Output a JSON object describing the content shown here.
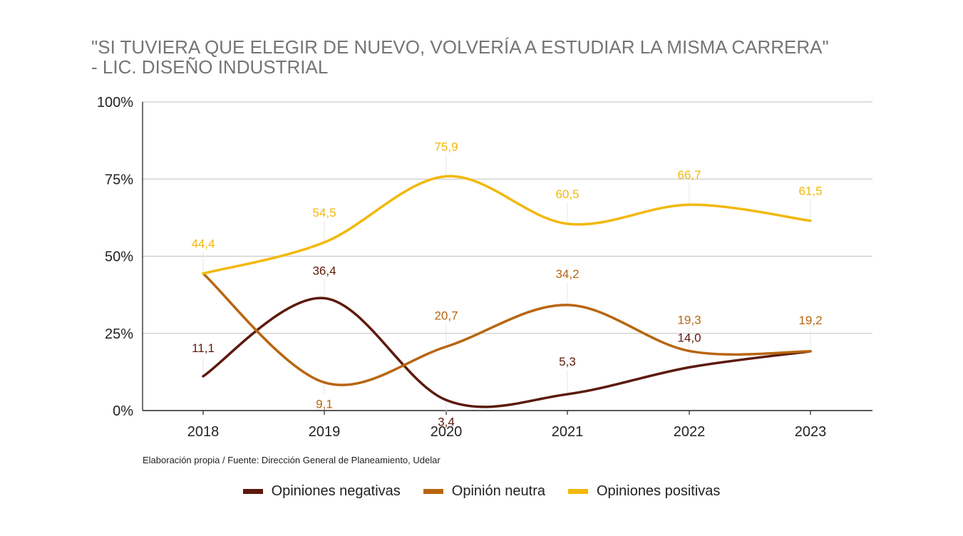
{
  "title_line1": "\"SI TUVIERA QUE ELEGIR DE NUEVO, VOLVERÍA A ESTUDIAR LA MISMA CARRERA\"",
  "title_line2": "- LIC. DISEÑO INDUSTRIAL",
  "source": "Elaboración propia / Fuente: Dirección General de Planeamiento, Udelar",
  "colors": {
    "negativas": "#5c1a0b",
    "neutra": "#b8650f",
    "positivas": "#f2b80a",
    "grid": "#cccccc",
    "axis": "#222222"
  },
  "chart_data": {
    "type": "line",
    "title": "\"SI TUVIERA QUE ELEGIR DE NUEVO, VOLVERÍA A ESTUDIAR LA MISMA CARRERA\" - LIC. DISEÑO INDUSTRIAL",
    "categories": [
      "2018",
      "2019",
      "2020",
      "2021",
      "2022",
      "2023"
    ],
    "yticks": [
      "0%",
      "25%",
      "50%",
      "75%",
      "100%"
    ],
    "ylim": [
      0,
      100
    ],
    "grid": true,
    "legend_position": "bottom",
    "smooth": true,
    "series": [
      {
        "name": "Opiniones negativas",
        "color": "#5c1a0b",
        "values": [
          11.1,
          36.4,
          3.4,
          5.3,
          14.0,
          19.2
        ],
        "labels": [
          "11,1",
          "36,4",
          "3,4",
          "5,3",
          "14,0",
          ""
        ]
      },
      {
        "name": "Opinión neutra",
        "color": "#b8650f",
        "values": [
          44.4,
          9.1,
          20.7,
          34.2,
          19.3,
          19.2
        ],
        "labels": [
          "",
          "9,1",
          "20,7",
          "34,2",
          "19,3",
          "19,2"
        ]
      },
      {
        "name": "Opiniones positivas",
        "color": "#f2b80a",
        "values": [
          44.4,
          54.5,
          75.9,
          60.5,
          66.7,
          61.5
        ],
        "labels": [
          "44,4",
          "54,5",
          "75,9",
          "60,5",
          "66,7",
          "61,5"
        ]
      }
    ]
  }
}
